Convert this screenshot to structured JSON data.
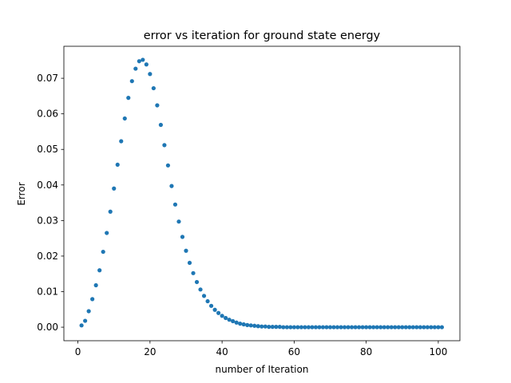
{
  "chart_data": {
    "type": "scatter",
    "title": "error vs iteration for ground state energy",
    "xlabel": "number of Iteration",
    "ylabel": "Error",
    "xlim": [
      -3.9,
      106
    ],
    "ylim": [
      -0.0038,
      0.079
    ],
    "xticks": [
      0,
      20,
      40,
      60,
      80,
      100
    ],
    "xtick_labels": [
      "0",
      "20",
      "40",
      "60",
      "80",
      "100"
    ],
    "yticks": [
      0.0,
      0.01,
      0.02,
      0.03,
      0.04,
      0.05,
      0.06,
      0.07
    ],
    "ytick_labels": [
      "0.00",
      "0.01",
      "0.02",
      "0.03",
      "0.04",
      "0.05",
      "0.06",
      "0.07"
    ],
    "grid": false,
    "legend": "none",
    "colors": {
      "marker": "#1f77b4"
    },
    "series": [
      {
        "x": [
          1,
          2,
          3,
          4,
          5,
          6,
          7,
          8,
          9,
          10,
          11,
          12,
          13,
          14,
          15,
          16,
          17,
          18,
          19,
          20,
          21,
          22,
          23,
          24,
          25,
          26,
          27,
          28,
          29,
          30,
          31,
          32,
          33,
          34,
          35,
          36,
          37,
          38,
          39,
          40,
          41,
          42,
          43,
          44,
          45,
          46,
          47,
          48,
          49,
          50,
          51,
          52,
          53,
          54,
          55,
          56,
          57,
          58,
          59,
          60,
          61,
          62,
          63,
          64,
          65,
          66,
          67,
          68,
          69,
          70,
          71,
          72,
          73,
          74,
          75,
          76,
          77,
          78,
          79,
          80,
          81,
          82,
          83,
          84,
          85,
          86,
          87,
          88,
          89,
          90,
          91,
          92,
          93,
          94,
          95,
          96,
          97,
          98,
          99,
          100,
          101
        ],
        "values": [
          0.0005,
          0.0018,
          0.0045,
          0.0079,
          0.0118,
          0.016,
          0.0212,
          0.0265,
          0.0325,
          0.039,
          0.0457,
          0.0523,
          0.0587,
          0.0645,
          0.0692,
          0.0727,
          0.0748,
          0.0752,
          0.0739,
          0.0712,
          0.0672,
          0.0624,
          0.0569,
          0.0512,
          0.0455,
          0.0397,
          0.0345,
          0.0297,
          0.0254,
          0.0215,
          0.0181,
          0.0152,
          0.0127,
          0.0106,
          0.0088,
          0.0073,
          0.006,
          0.0049,
          0.004,
          0.0032,
          0.0026,
          0.0021,
          0.0017,
          0.0013,
          0.001,
          0.0008,
          0.0006,
          0.0005,
          0.0004,
          0.0003,
          0.0002,
          0.0002,
          0.0001,
          0.0001,
          0.0001,
          0.0001,
          0.0,
          0.0,
          0.0,
          0.0,
          0.0,
          0.0,
          0.0,
          0.0,
          0.0,
          0.0,
          0.0,
          0.0,
          0.0,
          0.0,
          0.0,
          0.0,
          0.0,
          0.0,
          0.0,
          0.0,
          0.0,
          0.0,
          0.0,
          0.0,
          0.0,
          0.0,
          0.0,
          0.0,
          0.0,
          0.0,
          0.0,
          0.0,
          0.0,
          0.0,
          0.0,
          0.0,
          0.0,
          0.0,
          0.0,
          0.0,
          0.0,
          0.0,
          0.0,
          0.0,
          0.0
        ]
      }
    ]
  }
}
